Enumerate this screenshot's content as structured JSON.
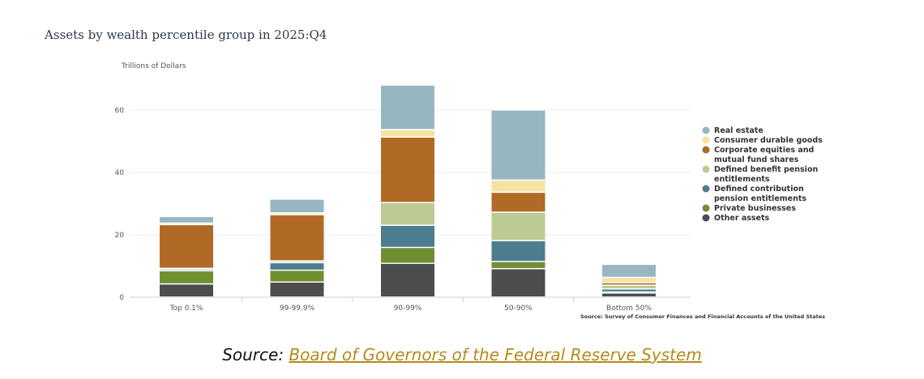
{
  "title": "Assets by wealth percentile group in 2025:Q4",
  "caption": {
    "prefix": "Source: ",
    "link_text": "Board of Governors of the Federal Reserve System"
  },
  "chart_data": {
    "type": "bar",
    "stacked": true,
    "ylabel": "Trillions of Dollars",
    "ylim": [
      0,
      68
    ],
    "yticks": [
      0,
      20,
      40,
      60
    ],
    "grid": true,
    "legend_position": "right",
    "source_note": "Source: Survey of Consumer Finances and Financial Accounts of the United States",
    "categories": [
      "Top 0.1%",
      "99-99.9%",
      "90-99%",
      "50-90%",
      "Bottom 50%"
    ],
    "series": [
      {
        "name": "Other assets",
        "color": "#4d4d4d",
        "values": [
          4.2,
          4.8,
          10.8,
          9.1,
          1.3
        ]
      },
      {
        "name": "Private businesses",
        "color": "#6f8f32",
        "values": [
          4.2,
          3.8,
          5.1,
          2.3,
          0.3
        ]
      },
      {
        "name": "Defined contribution pension entitlements",
        "color": "#4b7d8f",
        "values": [
          0.5,
          2.4,
          7.1,
          6.7,
          1.0
        ]
      },
      {
        "name": "Defined benefit pension entitlements",
        "color": "#bccb93",
        "values": [
          0.3,
          0.6,
          7.3,
          9.1,
          1.2
        ]
      },
      {
        "name": "Corporate equities and mutual fund shares",
        "color": "#b06a26",
        "values": [
          14.0,
          14.8,
          21.0,
          6.4,
          0.8
        ]
      },
      {
        "name": "Consumer durable goods",
        "color": "#f6e2a1",
        "values": [
          0.5,
          0.6,
          2.4,
          3.9,
          1.7
        ]
      },
      {
        "name": "Real estate",
        "color": "#96b6c2",
        "values": [
          2.1,
          4.4,
          14.3,
          22.5,
          4.2
        ]
      }
    ],
    "legend_order": [
      "Real estate",
      "Consumer durable goods",
      "Corporate equities and mutual fund shares",
      "Defined benefit pension entitlements",
      "Defined contribution pension entitlements",
      "Private businesses",
      "Other assets"
    ],
    "legend_lines": {
      "Real estate": [
        "Real estate"
      ],
      "Consumer durable goods": [
        "Consumer durable goods"
      ],
      "Corporate equities and mutual fund shares": [
        "Corporate equities and",
        "mutual fund shares"
      ],
      "Defined benefit pension entitlements": [
        "Defined benefit pension",
        "entitlements"
      ],
      "Defined contribution pension entitlements": [
        "Defined contribution",
        "pension entitlements"
      ],
      "Private businesses": [
        "Private businesses"
      ],
      "Other assets": [
        "Other assets"
      ]
    }
  }
}
